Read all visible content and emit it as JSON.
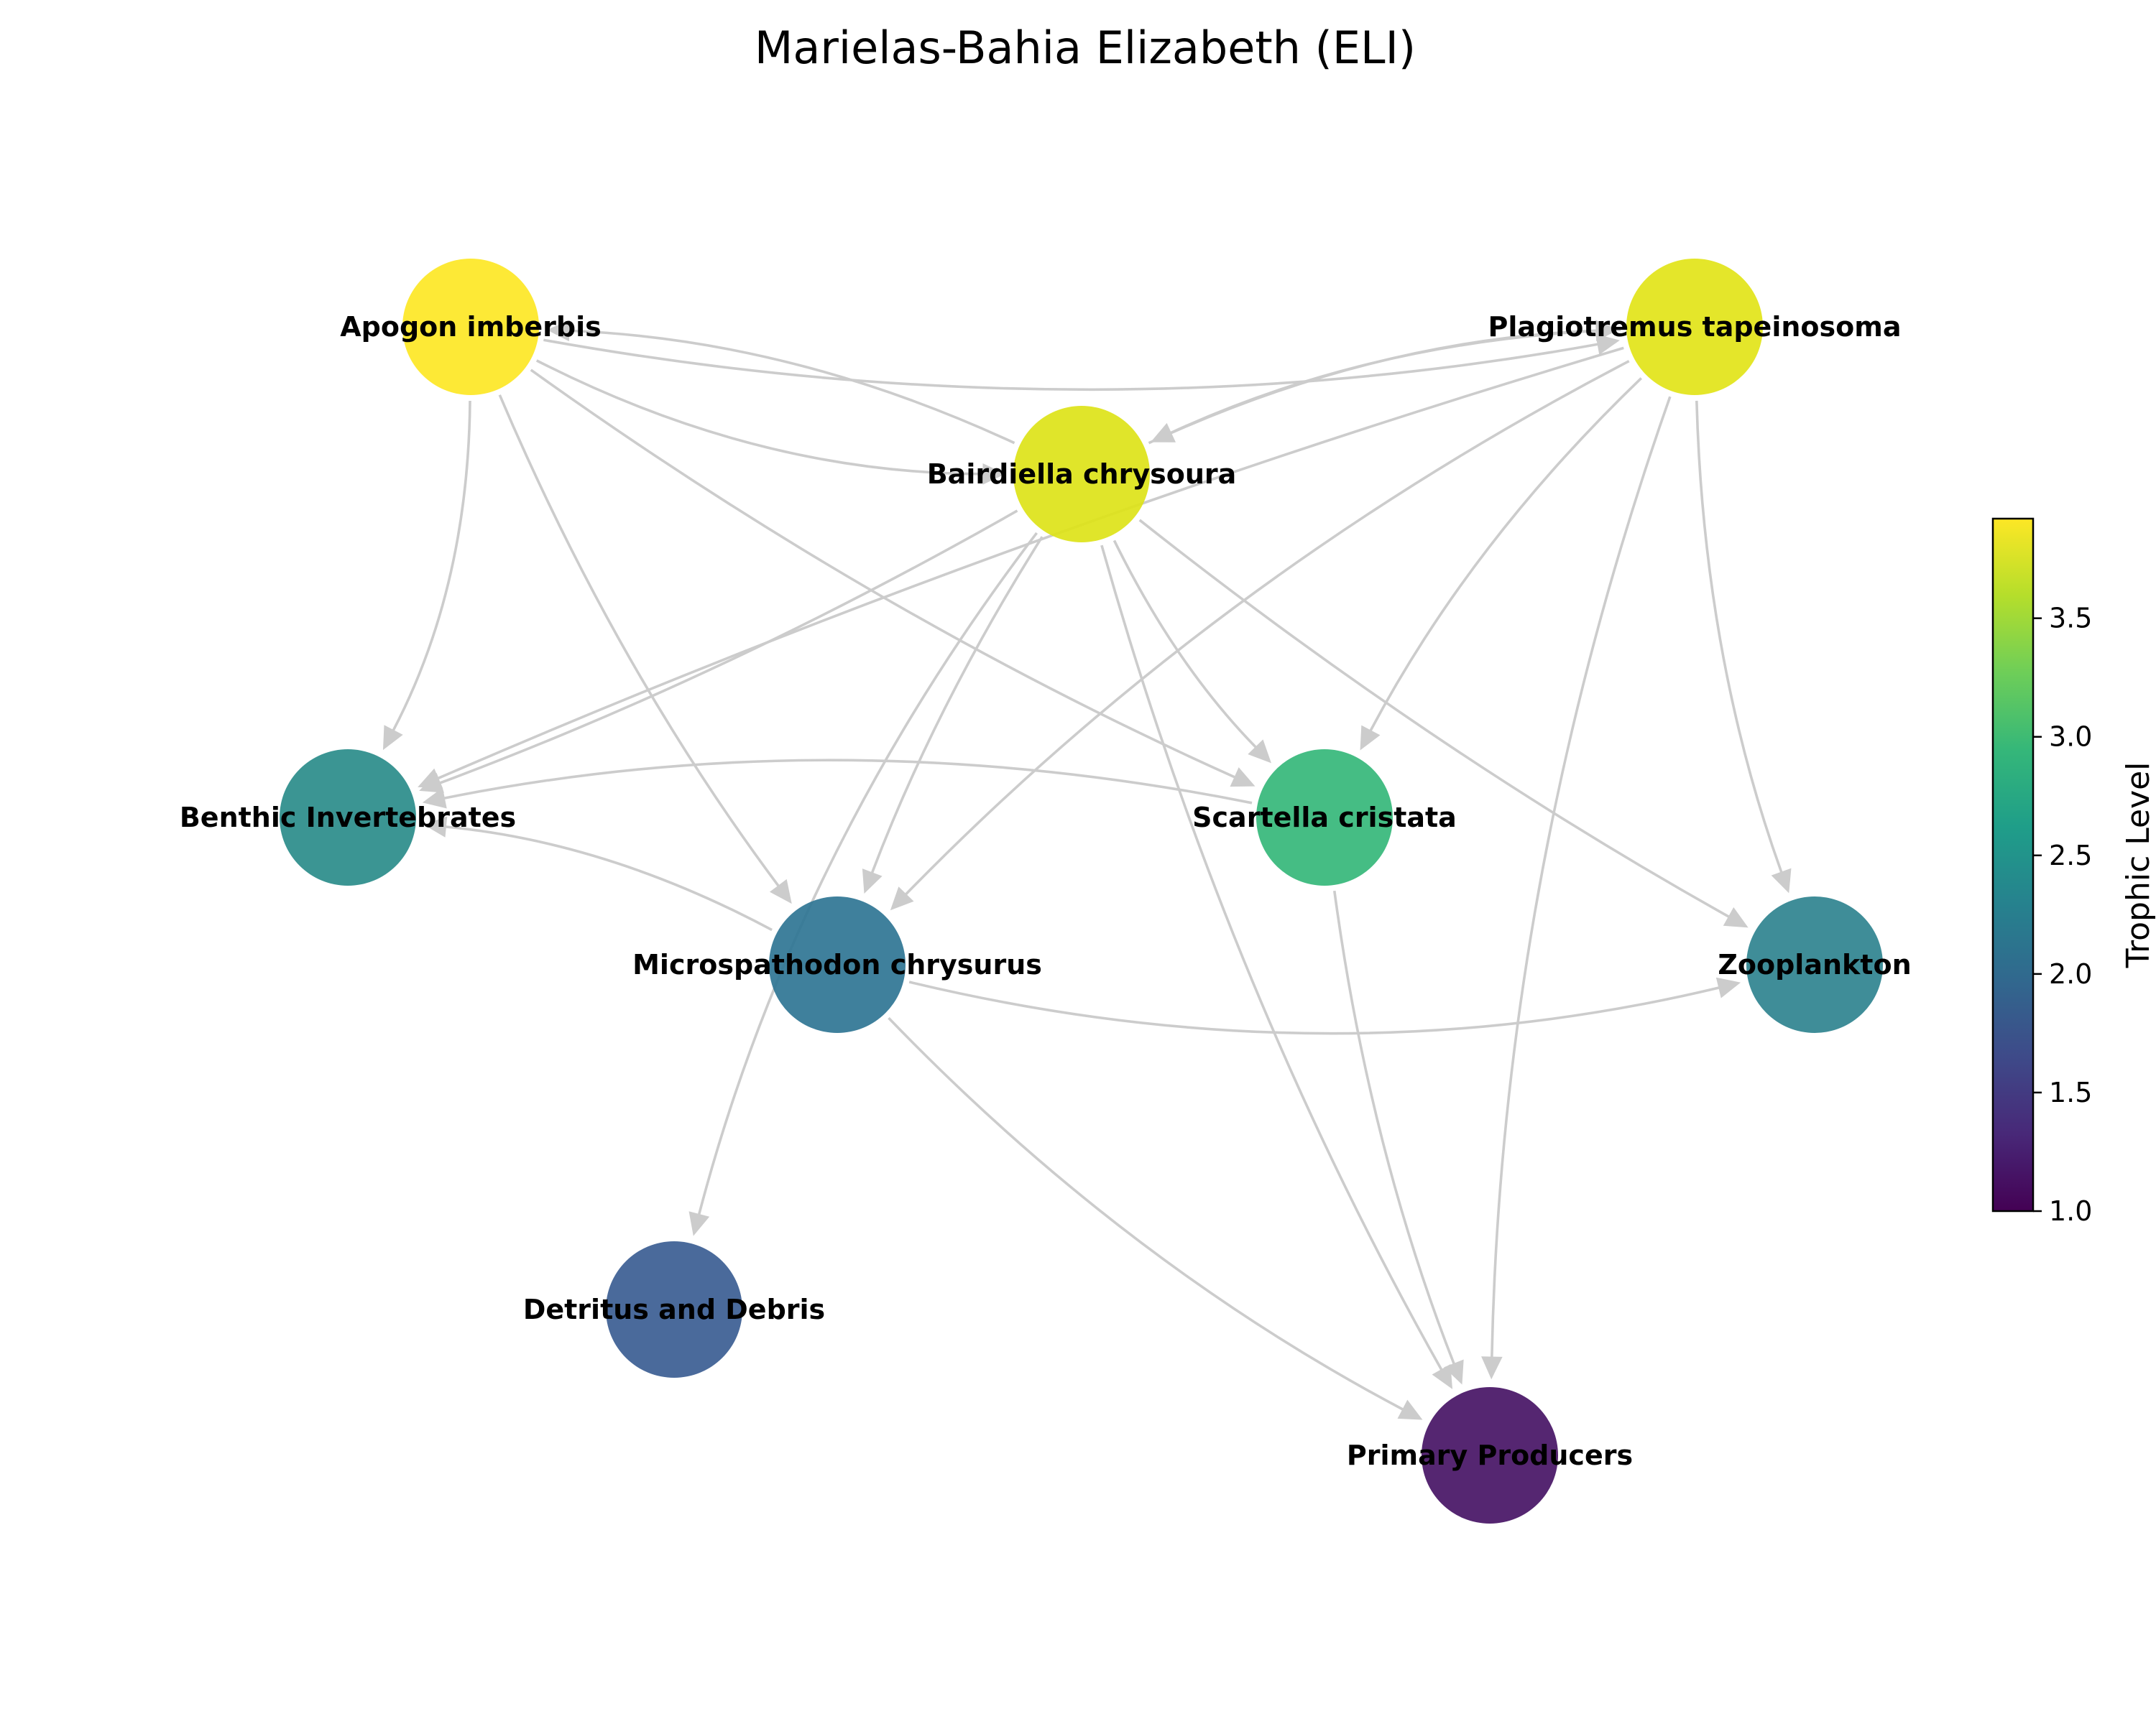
{
  "title": "Marielas-Bahia Elizabeth (ELI)",
  "nodes": [
    {
      "id": "apogon",
      "label": "Apogon imberbis",
      "trophic_level": 3.92,
      "color": "#fde725"
    },
    {
      "id": "plagiotremus",
      "label": "Plagiotremus tapeinosoma",
      "trophic_level": 3.85,
      "color": "#e2e418"
    },
    {
      "id": "bairdiella",
      "label": "Bairdiella chrysoura",
      "trophic_level": 3.83,
      "color": "#dde318"
    },
    {
      "id": "benthic",
      "label": "Benthic Invertebrates",
      "trophic_level": 2.3,
      "color": "#2a8c8a"
    },
    {
      "id": "scartella",
      "label": "Scartella cristata",
      "trophic_level": 2.8,
      "color": "#35b779"
    },
    {
      "id": "micro",
      "label": "Microspathodon chrysurus",
      "trophic_level": 2.15,
      "color": "#2f7594"
    },
    {
      "id": "zooplankton",
      "label": "Zooplankton",
      "trophic_level": 2.2,
      "color": "#2f838f"
    },
    {
      "id": "detritus",
      "label": "Detritus and Debris",
      "trophic_level": 1.7,
      "color": "#3b5d92"
    },
    {
      "id": "producers",
      "label": "Primary Producers",
      "trophic_level": 1.05,
      "color": "#471365"
    }
  ],
  "edges": [
    {
      "from": "apogon",
      "to": "benthic"
    },
    {
      "from": "apogon",
      "to": "micro"
    },
    {
      "from": "apogon",
      "to": "scartella"
    },
    {
      "from": "apogon",
      "to": "bairdiella"
    },
    {
      "from": "apogon",
      "to": "plagiotremus"
    },
    {
      "from": "bairdiella",
      "to": "apogon"
    },
    {
      "from": "bairdiella",
      "to": "plagiotremus"
    },
    {
      "from": "bairdiella",
      "to": "benthic"
    },
    {
      "from": "bairdiella",
      "to": "micro"
    },
    {
      "from": "bairdiella",
      "to": "scartella"
    },
    {
      "from": "bairdiella",
      "to": "zooplankton"
    },
    {
      "from": "bairdiella",
      "to": "producers"
    },
    {
      "from": "bairdiella",
      "to": "detritus"
    },
    {
      "from": "plagiotremus",
      "to": "bairdiella"
    },
    {
      "from": "plagiotremus",
      "to": "micro"
    },
    {
      "from": "plagiotremus",
      "to": "scartella"
    },
    {
      "from": "plagiotremus",
      "to": "zooplankton"
    },
    {
      "from": "plagiotremus",
      "to": "producers"
    },
    {
      "from": "plagiotremus",
      "to": "benthic"
    },
    {
      "from": "scartella",
      "to": "benthic"
    },
    {
      "from": "scartella",
      "to": "producers"
    },
    {
      "from": "micro",
      "to": "benthic"
    },
    {
      "from": "micro",
      "to": "zooplankton"
    },
    {
      "from": "micro",
      "to": "producers"
    }
  ],
  "colorbar": {
    "label": "Trophic Level",
    "min": 1.0,
    "max": 3.92,
    "ticks": [
      "1.0",
      "1.5",
      "2.0",
      "2.5",
      "3.0",
      "3.5"
    ],
    "tick_values": [
      1.0,
      1.5,
      2.0,
      2.5,
      3.0,
      3.5
    ],
    "colormap": "viridis",
    "gradient_colors": [
      "#440154",
      "#482878",
      "#3e4a89",
      "#31688e",
      "#26828e",
      "#1f9e89",
      "#35b779",
      "#6ece58",
      "#b5de2b",
      "#fde725"
    ]
  }
}
